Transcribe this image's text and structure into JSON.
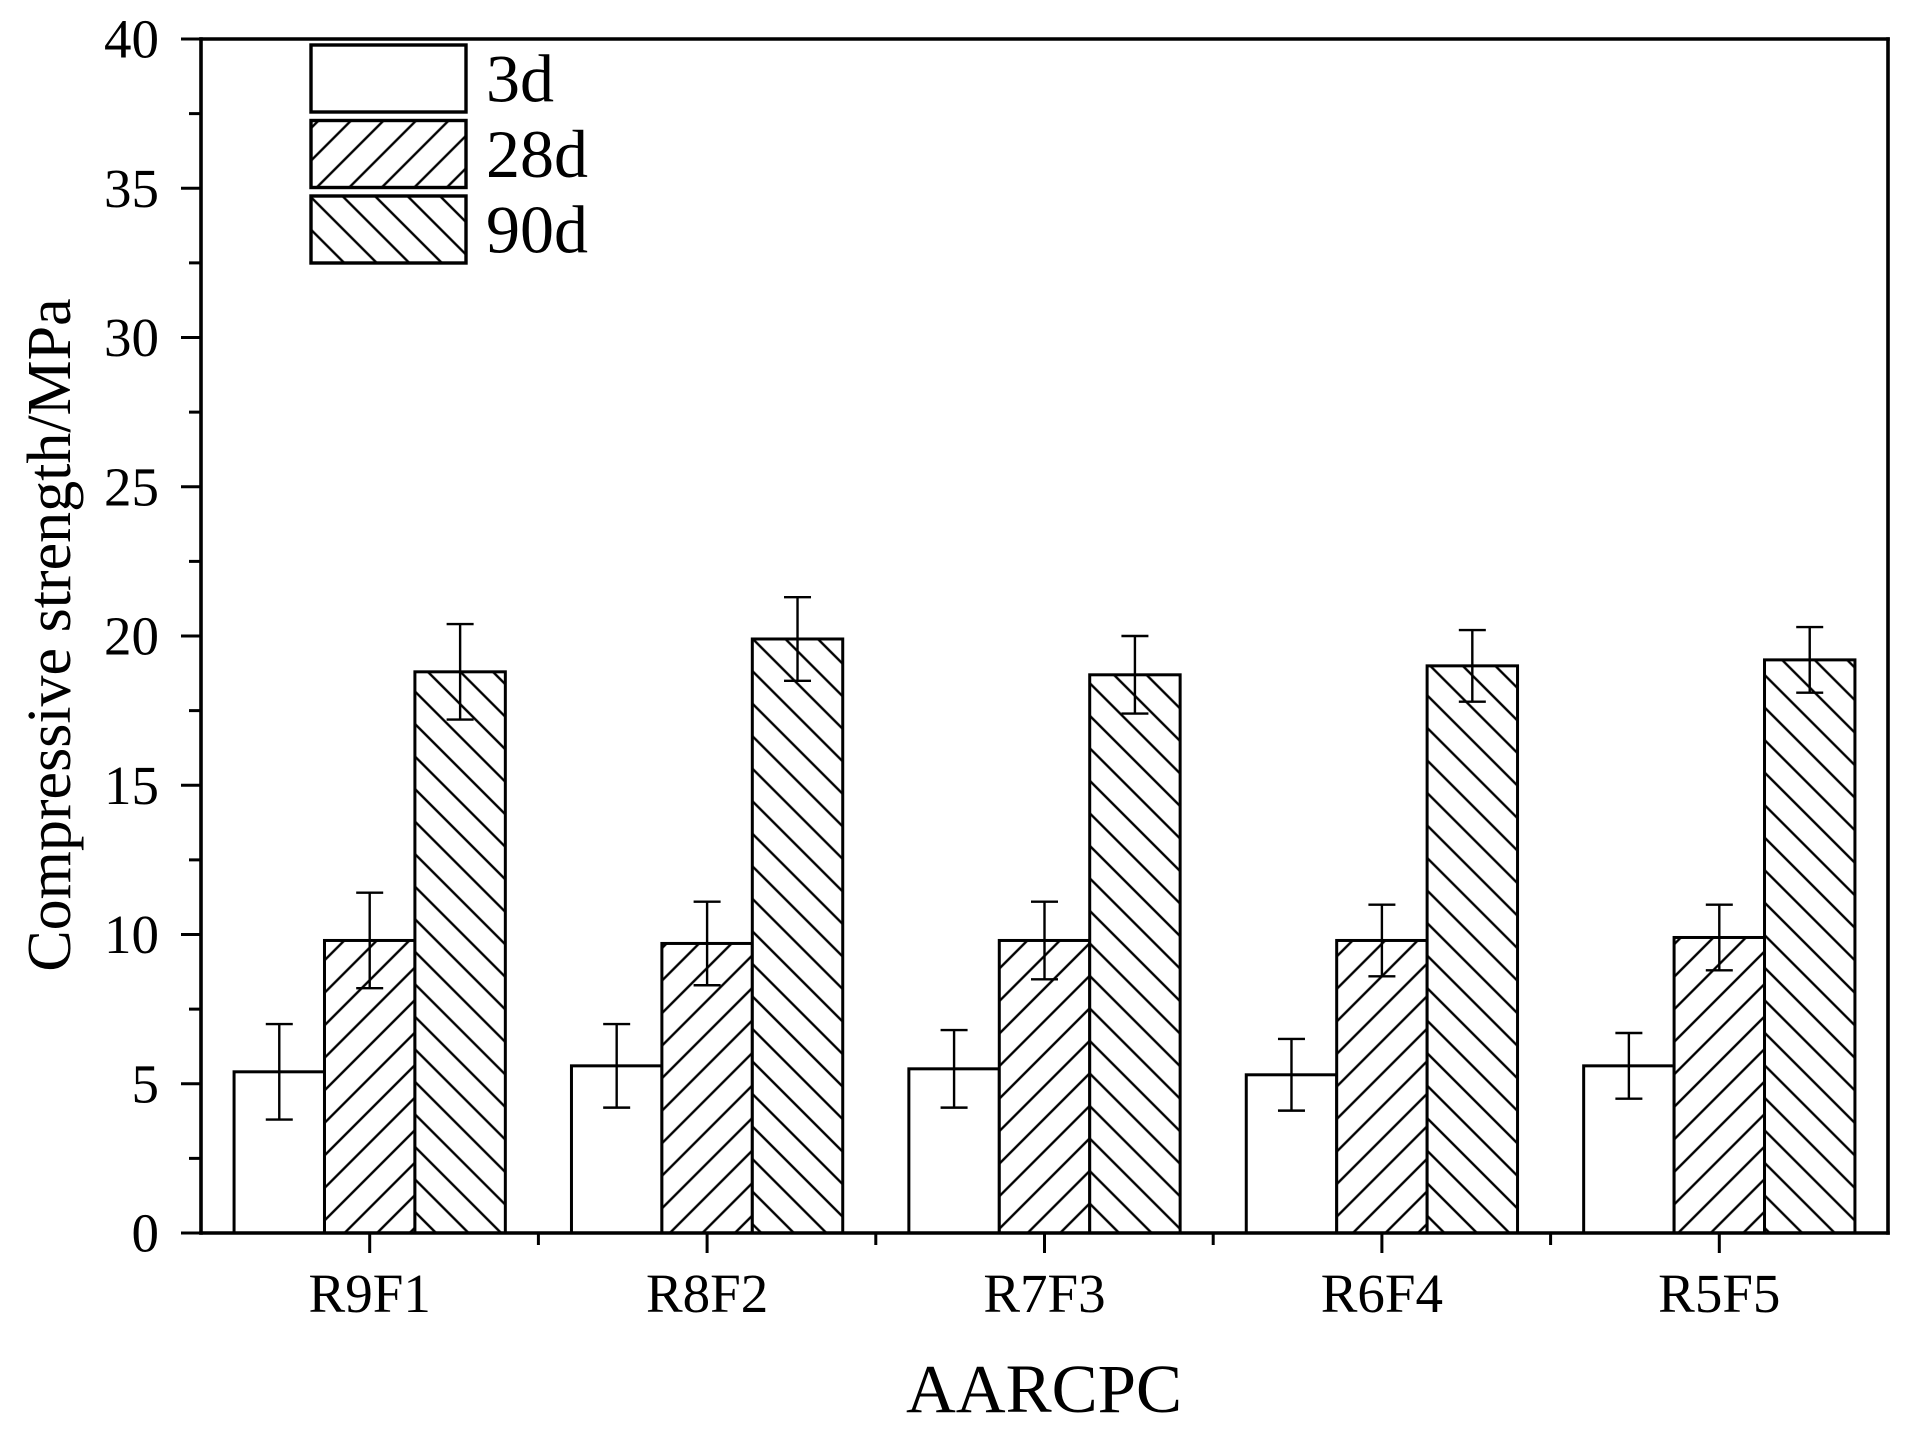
{
  "chart_data": {
    "type": "bar",
    "xlabel": "AARCPC",
    "ylabel": "Compressive strength/MPa",
    "categories": [
      "R9F1",
      "R8F2",
      "R7F3",
      "R6F4",
      "R5F5"
    ],
    "ylim": [
      0,
      40
    ],
    "yticks": [
      0,
      5,
      10,
      15,
      20,
      25,
      30,
      35,
      40
    ],
    "series": [
      {
        "name": "3d",
        "values": [
          5.4,
          5.6,
          5.5,
          5.3,
          5.6
        ],
        "errors": [
          1.6,
          1.4,
          1.3,
          1.2,
          1.1
        ]
      },
      {
        "name": "28d",
        "values": [
          9.8,
          9.7,
          9.8,
          9.8,
          9.9
        ],
        "errors": [
          1.6,
          1.4,
          1.3,
          1.2,
          1.1
        ]
      },
      {
        "name": "90d",
        "values": [
          18.8,
          19.9,
          18.7,
          19.0,
          19.2
        ],
        "errors": [
          1.6,
          1.4,
          1.3,
          1.2,
          1.1
        ]
      }
    ],
    "legend_position": "top-left",
    "grid": false
  },
  "colors": {
    "ink": "#000000",
    "background": "#ffffff"
  }
}
